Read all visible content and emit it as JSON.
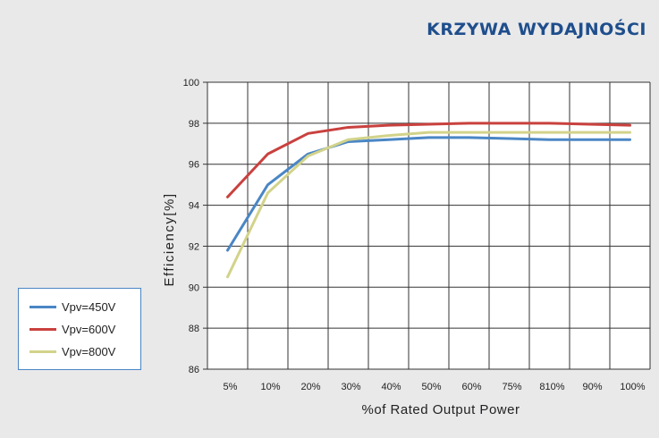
{
  "title": "KRZYWA WYDAJNOŚCI",
  "chart_data": {
    "type": "line",
    "title": "KRZYWA WYDAJNOŚCI",
    "xlabel": "%of Rated Output Power",
    "ylabel": "Efficiency[%]",
    "categories": [
      "5%",
      "10%",
      "20%",
      "30%",
      "40%",
      "50%",
      "60%",
      "75%",
      "810%",
      "90%",
      "100%"
    ],
    "ylim": [
      86,
      100
    ],
    "yticks": [
      "86",
      "88",
      "90",
      "92",
      "94",
      "96",
      "98",
      "100"
    ],
    "grid": true,
    "legend_position": "bottom-left",
    "series": [
      {
        "name": "Vpv=450V",
        "color": "#4a86c5",
        "values": [
          91.8,
          95.0,
          96.5,
          97.1,
          97.2,
          97.3,
          97.3,
          97.25,
          97.2,
          97.2,
          97.2
        ]
      },
      {
        "name": "Vpv=600V",
        "color": "#c9413e",
        "values": [
          94.4,
          96.5,
          97.5,
          97.8,
          97.9,
          97.95,
          98.0,
          98.0,
          98.0,
          97.95,
          97.9
        ]
      },
      {
        "name": "Vpv=800V",
        "color": "#d2d38a",
        "values": [
          90.5,
          94.6,
          96.4,
          97.2,
          97.4,
          97.55,
          97.55,
          97.55,
          97.55,
          97.55,
          97.55
        ]
      }
    ]
  }
}
